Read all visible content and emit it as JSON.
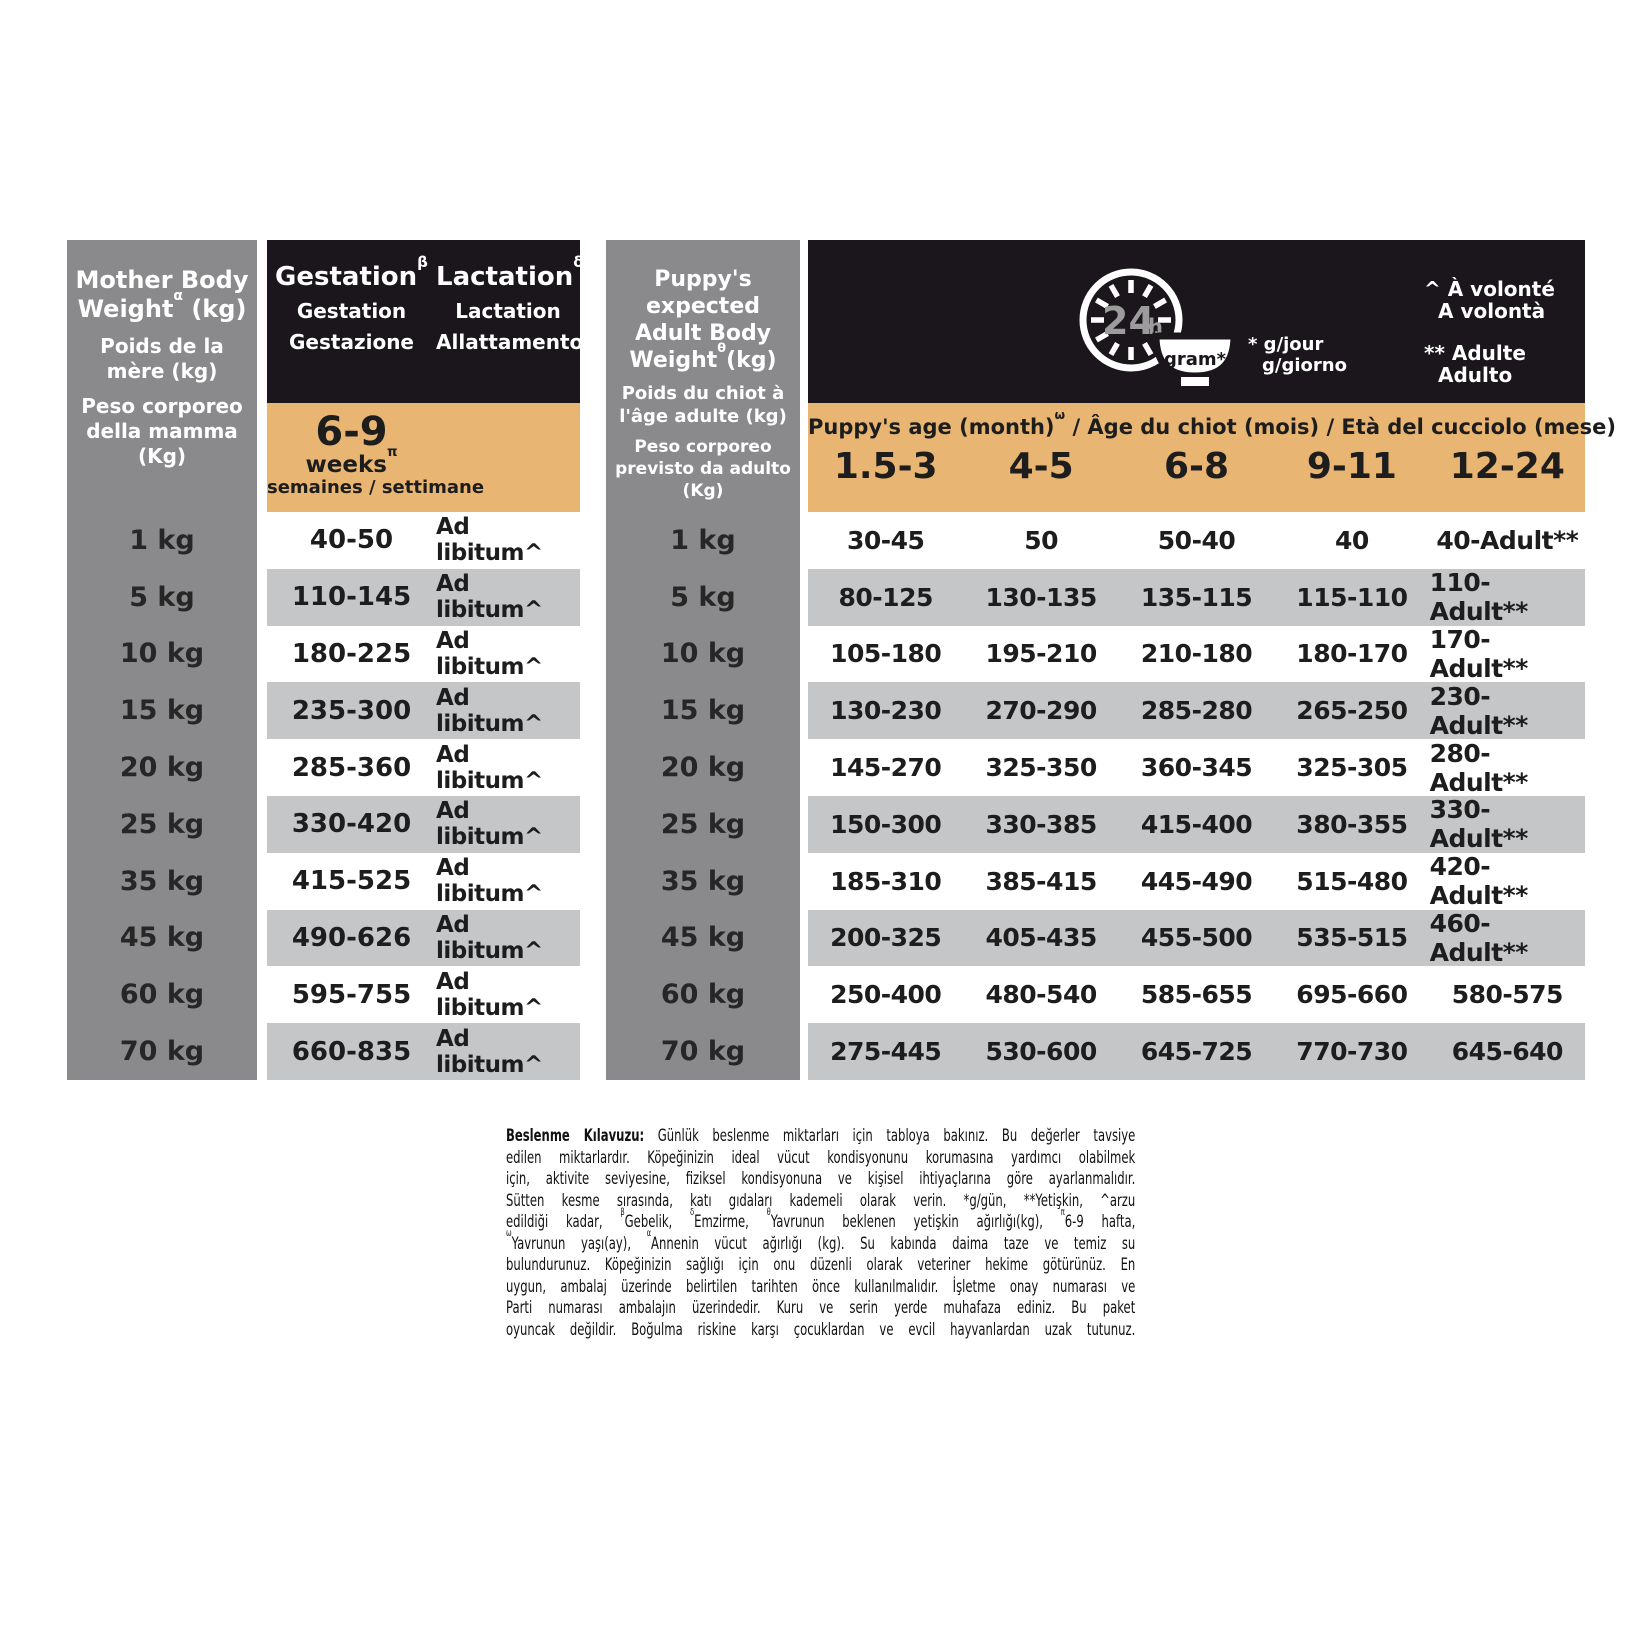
{
  "colors": {
    "header_black": "#1a161b",
    "accent_tan": "#e9b572",
    "column_gray": "#8a8a8c",
    "row_stripe_gray": "#c5c6c8",
    "clock_text_gray": "#9c9c9c"
  },
  "mother_column": {
    "title_html": "Mother Body Weight<sup>α</sup> (kg)",
    "subtitle_fr": "Poids de la mère (kg)",
    "subtitle_it": "Peso corporeo della mamma (Kg)",
    "weights": [
      "1 kg",
      "5 kg",
      "10 kg",
      "15 kg",
      "20 kg",
      "25 kg",
      "35 kg",
      "45 kg",
      "60 kg",
      "70 kg"
    ]
  },
  "gestation_table": {
    "gestation_header_html": "Gestation<sup>β</sup>",
    "gestation_fr": "Gestation",
    "gestation_it": "Gestazione",
    "lactation_header_html": "Lactation<sup>δ</sup>",
    "lactation_fr": "Lactation",
    "lactation_it": "Allattamento",
    "weeks_value": "6-9",
    "weeks_label_html": "weeks<sup>π</sup>",
    "weeks_sub": "semaines / settimane",
    "rows": [
      {
        "gestation": "40-50",
        "lactation": "Ad libitum^"
      },
      {
        "gestation": "110-145",
        "lactation": "Ad libitum^"
      },
      {
        "gestation": "180-225",
        "lactation": "Ad libitum^"
      },
      {
        "gestation": "235-300",
        "lactation": "Ad libitum^"
      },
      {
        "gestation": "285-360",
        "lactation": "Ad libitum^"
      },
      {
        "gestation": "330-420",
        "lactation": "Ad libitum^"
      },
      {
        "gestation": "415-525",
        "lactation": "Ad libitum^"
      },
      {
        "gestation": "490-626",
        "lactation": "Ad libitum^"
      },
      {
        "gestation": "595-755",
        "lactation": "Ad libitum^"
      },
      {
        "gestation": "660-835",
        "lactation": "Ad libitum^"
      }
    ]
  },
  "puppy_column": {
    "title_html": "Puppy's expected Adult Body Weight<sup>θ</sup>(kg)",
    "subtitle_fr": "Poids du chiot à l'âge adulte (kg)",
    "subtitle_it": "Peso corporeo previsto da adulto (Kg)",
    "weights": [
      "1 kg",
      "5 kg",
      "10 kg",
      "15 kg",
      "20 kg",
      "25 kg",
      "35 kg",
      "45 kg",
      "60 kg",
      "70 kg"
    ]
  },
  "age_table": {
    "header_html": "Puppy's age (month)<sup>ω</sup> / Âge du chiot (mois) / Età del cucciolo (mese)",
    "columns": [
      "1.5-3",
      "4-5",
      "6-8",
      "9-11",
      "12-24"
    ],
    "rows": [
      [
        "30-45",
        "50",
        "50-40",
        "40",
        "40-Adult**"
      ],
      [
        "80-125",
        "130-135",
        "135-115",
        "115-110",
        "110-Adult**"
      ],
      [
        "105-180",
        "195-210",
        "210-180",
        "180-170",
        "170-Adult**"
      ],
      [
        "130-230",
        "270-290",
        "285-280",
        "265-250",
        "230-Adult**"
      ],
      [
        "145-270",
        "325-350",
        "360-345",
        "325-305",
        "280-Adult**"
      ],
      [
        "150-300",
        "330-385",
        "415-400",
        "380-355",
        "330-Adult**"
      ],
      [
        "185-310",
        "385-415",
        "445-490",
        "515-480",
        "420-Adult**"
      ],
      [
        "200-325",
        "405-435",
        "455-500",
        "535-515",
        "460-Adult**"
      ],
      [
        "250-400",
        "480-540",
        "585-655",
        "695-660",
        "580-575"
      ],
      [
        "275-445",
        "530-600",
        "645-725",
        "770-730",
        "645-640"
      ]
    ]
  },
  "legend": {
    "clock_value": "24",
    "clock_unit": "h",
    "bowl_label": "gram*",
    "per_day_line1": "* g/jour",
    "per_day_line2": "g/giorno",
    "adlib_line1": "^ À volonté",
    "adlib_line2": "A volontà",
    "adult_line1": "** Adulte",
    "adult_line2": "Adulto"
  },
  "footer": {
    "lines_html": [
      "<b>Beslenme Kılavuzu:</b> Günlük beslenme miktarları için tabloya bakınız. Bu değerler tavsiye",
      "edilen miktarlardır. Köpeğinizin ideal vücut kondisyonunu korumasına yardımcı olabilmek",
      "için, aktivite seviyesine, fiziksel kondisyonuna ve kişisel ihtiyaçlarına göre ayarlanmalıdır.",
      "Sütten kesme sırasında, katı gıdaları kademeli olarak verin. *g/gün, **Yetişkin, ^arzu",
      "edildiği kadar, <sup>β</sup>Gebelik, <sup>δ</sup>Emzirme, <sup>θ</sup>Yavrunun beklenen yetişkin ağırlığı(kg), <sup>π</sup>6-9 hafta,",
      "<sup>ω</sup>Yavrunun yaşı(ay), <sup>α</sup>Annenin vücut ağırlığı (kg). Su kabında daima taze ve temiz su",
      "bulundurunuz. Köpeğinizin sağlığı için onu düzenli olarak veteriner hekime götürünüz. En",
      "uygun, ambalaj üzerinde belirtilen tarihten önce kullanılmalıdır. İşletme onay numarası ve",
      "Parti numarası ambalajın üzerindedir. Kuru ve serin yerde muhafaza ediniz. Bu paket",
      "oyuncak değildir. Boğulma riskine karşı çocuklardan ve evcil hayvanlardan uzak tutunuz."
    ]
  }
}
